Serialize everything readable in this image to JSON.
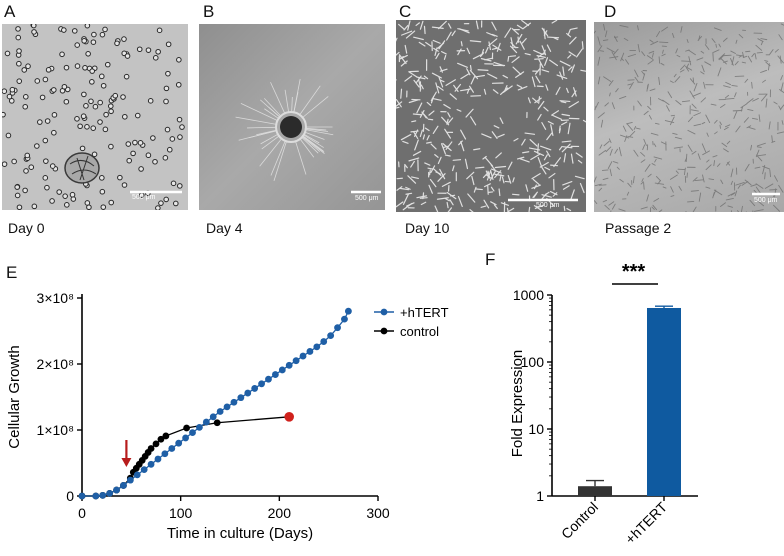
{
  "panels": {
    "A": {
      "letter": "A",
      "caption": "Day 0",
      "scalebar": "500 μm"
    },
    "B": {
      "letter": "B",
      "caption": "Day 4",
      "scalebar": "500 μm"
    },
    "C": {
      "letter": "C",
      "caption": "Day 10",
      "scalebar": "500 μm"
    },
    "D": {
      "letter": "D",
      "caption": "Passage 2",
      "scalebar": "500 μm"
    },
    "E": {
      "letter": "E"
    },
    "F": {
      "letter": "F",
      "significance": "***"
    }
  },
  "chart_data": [
    {
      "type": "line",
      "xlabel": "Time in culture (Days)",
      "ylabel": "Cellular Growth",
      "xlim": [
        0,
        300
      ],
      "ylim": [
        0,
        300000000
      ],
      "xticks": [
        "0",
        "100",
        "200",
        "300"
      ],
      "yticks": [
        "0",
        "1×10⁸",
        "2×10⁸",
        "3×10⁸"
      ],
      "legend_position": "top-right",
      "series": [
        {
          "name": "+hTERT",
          "color": "#1f5fa6",
          "x": [
            0,
            14,
            21,
            28,
            35,
            42,
            49,
            56,
            63,
            70,
            77,
            84,
            91,
            98,
            105,
            112,
            119,
            126,
            133,
            140,
            147,
            154,
            161,
            168,
            175,
            182,
            189,
            196,
            203,
            210,
            217,
            224,
            231,
            238,
            245,
            252,
            259,
            266,
            270
          ],
          "y": [
            0,
            0,
            1000000,
            4000000,
            9000000,
            16000000,
            24000000,
            32000000,
            40000000,
            48000000,
            56000000,
            64000000,
            72000000,
            80000000,
            88000000,
            96000000,
            104000000,
            112000000,
            120000000,
            128000000,
            135000000,
            142000000,
            149000000,
            156000000,
            163000000,
            170000000,
            177000000,
            184000000,
            191000000,
            198000000,
            205000000,
            212000000,
            219000000,
            226000000,
            234000000,
            243000000,
            255000000,
            268000000,
            280000000
          ]
        },
        {
          "name": "control",
          "color": "#000000",
          "x": [
            0,
            14,
            21,
            28,
            35,
            42,
            49,
            52,
            55,
            58,
            61,
            64,
            67,
            70,
            75,
            80,
            85,
            106,
            137,
            210
          ],
          "y": [
            0,
            0,
            1000000,
            4000000,
            9000000,
            16000000,
            27000000,
            36000000,
            42000000,
            48000000,
            54000000,
            60000000,
            66000000,
            72000000,
            79000000,
            86000000,
            91000000,
            103000000,
            111000000,
            120000000
          ],
          "terminal_marker_color": "#d0211c"
        }
      ],
      "annotation": {
        "type": "arrow",
        "x": 45,
        "color": "#b71c1c"
      }
    },
    {
      "type": "bar",
      "ylabel": "Fold Expression",
      "yscale": "log",
      "ylim": [
        1,
        1000
      ],
      "yticks": [
        "1",
        "10",
        "100",
        "1000"
      ],
      "categories": [
        "Control",
        "+hTERT"
      ],
      "values": [
        1.4,
        640
      ],
      "errors": [
        0.3,
        40
      ],
      "colors": [
        "#333333",
        "#0f5aa0"
      ]
    }
  ]
}
